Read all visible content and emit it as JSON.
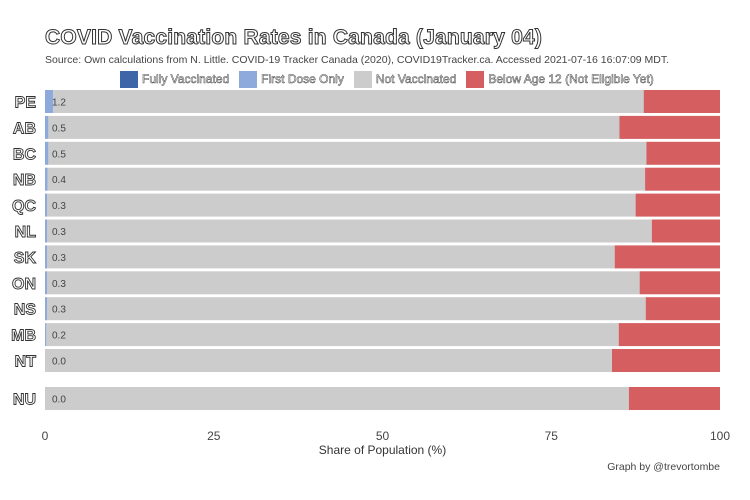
{
  "colors": {
    "fully_vaccinated": "#3D65A8",
    "first_dose_only": "#8EA9DB",
    "not_vaccinated": "#CCCCCC",
    "below_age_12": "#D55E60"
  },
  "chart_data": {
    "type": "bar",
    "orientation": "horizontal",
    "stacked": true,
    "title": "COVID Vaccination Rates in Canada (January 04)",
    "subtitle": "Source: Own calculations from N. Little. COVID-19 Tracker Canada (2020), COVID19Tracker.ca. Accessed 2021-07-16 16:07:09 MDT.",
    "caption": "Graph by @trevortombe",
    "xlabel": "Share of Population (%)",
    "xlim": [
      0,
      100
    ],
    "xticks": [
      0,
      25,
      50,
      75,
      100
    ],
    "legend_position": "top",
    "categories": [
      "PE",
      "AB",
      "BC",
      "NB",
      "QC",
      "NL",
      "SK",
      "ON",
      "NS",
      "MB",
      "NT",
      "NU"
    ],
    "series": [
      {
        "name": "Fully Vaccinated",
        "color_key": "fully_vaccinated",
        "values": [
          0,
          0,
          0,
          0,
          0,
          0,
          0,
          0,
          0,
          0,
          0,
          0
        ]
      },
      {
        "name": "First Dose Only",
        "color_key": "first_dose_only",
        "values": [
          1.2,
          0.5,
          0.5,
          0.4,
          0.3,
          0.3,
          0.3,
          0.3,
          0.3,
          0.2,
          0.0,
          0.0
        ]
      },
      {
        "name": "Not Vaccinated",
        "color_key": "not_vaccinated",
        "values": [
          87.5,
          84.6,
          88.6,
          88.5,
          87.2,
          89.6,
          84.1,
          87.8,
          88.7,
          84.8,
          84.0,
          86.5
        ]
      },
      {
        "name": "Below Age 12 (Not Eligible Yet)",
        "color_key": "below_age_12",
        "values": [
          11.3,
          14.9,
          10.9,
          11.1,
          12.5,
          10.1,
          15.6,
          11.9,
          11.0,
          15.0,
          16.0,
          13.5
        ]
      }
    ],
    "data_labels": [
      "1.2",
      "0.5",
      "0.5",
      "0.4",
      "0.3",
      "0.3",
      "0.3",
      "0.3",
      "0.3",
      "0.2",
      "0.0",
      "0.0"
    ]
  }
}
